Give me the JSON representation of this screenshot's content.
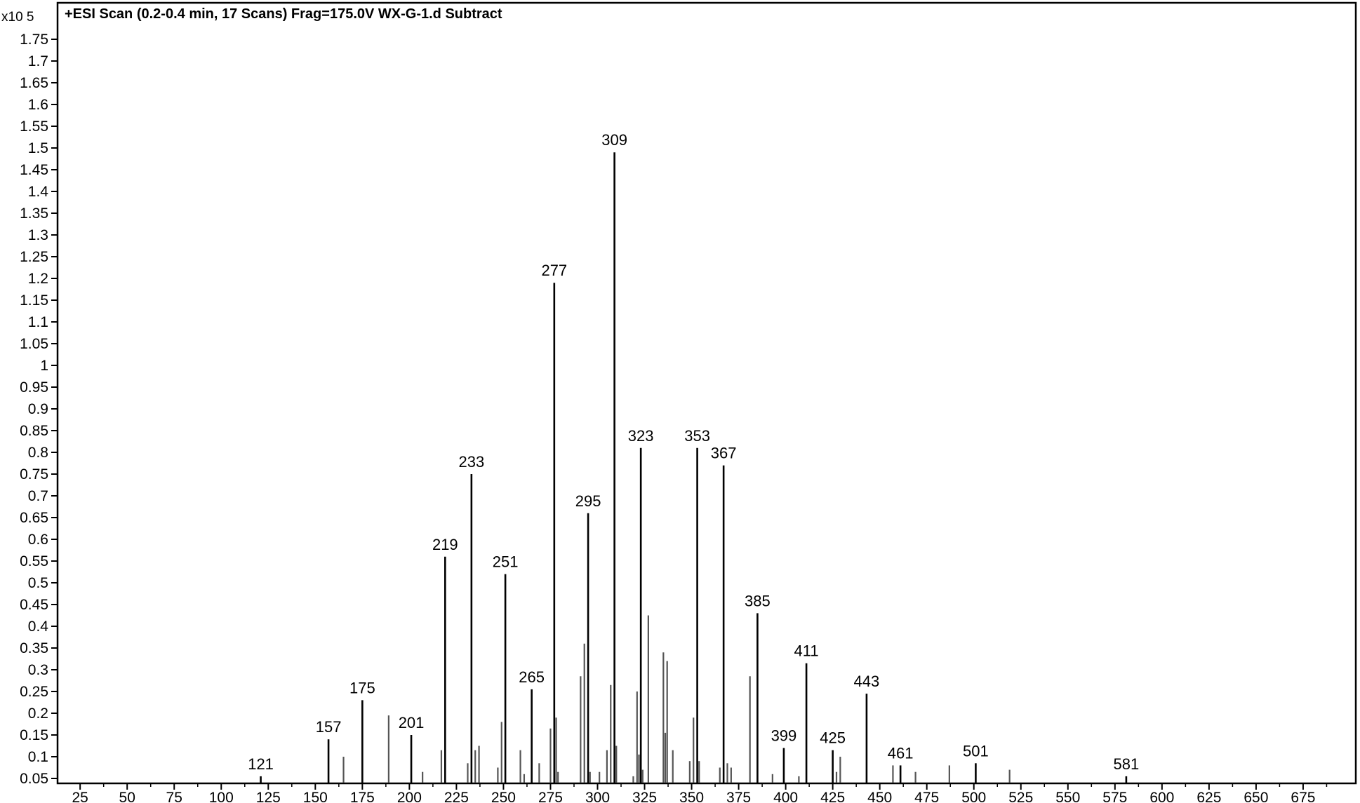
{
  "chart_data": {
    "type": "bar",
    "title": "+ESI Scan (0.2-0.4 min, 17 Scans) Frag=175.0V WX-G-1.d  Subtract",
    "y_exponent_label": "x10 5",
    "xlabel": "",
    "ylabel": "",
    "xlim": [
      13,
      703
    ],
    "ylim": [
      0.05,
      1.8
    ],
    "x_ticks": [
      25,
      50,
      75,
      100,
      125,
      150,
      175,
      200,
      225,
      250,
      275,
      300,
      325,
      350,
      375,
      400,
      425,
      450,
      475,
      500,
      525,
      550,
      575,
      600,
      625,
      650,
      675
    ],
    "y_ticks": [
      "0.05",
      "0.1",
      "0.15",
      "0.2",
      "0.25",
      "0.3",
      "0.35",
      "0.4",
      "0.45",
      "0.5",
      "0.55",
      "0.6",
      "0.65",
      "0.7",
      "0.75",
      "0.8",
      "0.85",
      "0.9",
      "0.95",
      "1",
      "1.05",
      "1.1",
      "1.15",
      "1.2",
      "1.25",
      "1.3",
      "1.35",
      "1.4",
      "1.45",
      "1.5",
      "1.55",
      "1.6",
      "1.65",
      "1.7",
      "1.75"
    ],
    "grid": false,
    "peaks": [
      {
        "mz": 121,
        "intensity": 0.055,
        "label": "121"
      },
      {
        "mz": 157,
        "intensity": 0.14,
        "label": "157"
      },
      {
        "mz": 165,
        "intensity": 0.1,
        "label": ""
      },
      {
        "mz": 175,
        "intensity": 0.23,
        "label": "175"
      },
      {
        "mz": 189,
        "intensity": 0.195,
        "label": ""
      },
      {
        "mz": 201,
        "intensity": 0.15,
        "label": "201"
      },
      {
        "mz": 207,
        "intensity": 0.065,
        "label": ""
      },
      {
        "mz": 217,
        "intensity": 0.115,
        "label": ""
      },
      {
        "mz": 219,
        "intensity": 0.56,
        "label": "219"
      },
      {
        "mz": 231,
        "intensity": 0.085,
        "label": ""
      },
      {
        "mz": 233,
        "intensity": 0.75,
        "label": "233"
      },
      {
        "mz": 235,
        "intensity": 0.115,
        "label": ""
      },
      {
        "mz": 237,
        "intensity": 0.125,
        "label": ""
      },
      {
        "mz": 247,
        "intensity": 0.075,
        "label": ""
      },
      {
        "mz": 249,
        "intensity": 0.18,
        "label": ""
      },
      {
        "mz": 251,
        "intensity": 0.52,
        "label": "251"
      },
      {
        "mz": 259,
        "intensity": 0.115,
        "label": ""
      },
      {
        "mz": 261,
        "intensity": 0.06,
        "label": ""
      },
      {
        "mz": 265,
        "intensity": 0.255,
        "label": "265"
      },
      {
        "mz": 269,
        "intensity": 0.085,
        "label": ""
      },
      {
        "mz": 275,
        "intensity": 0.165,
        "label": ""
      },
      {
        "mz": 277,
        "intensity": 1.19,
        "label": "277"
      },
      {
        "mz": 278,
        "intensity": 0.19,
        "label": ""
      },
      {
        "mz": 279,
        "intensity": 0.065,
        "label": ""
      },
      {
        "mz": 291,
        "intensity": 0.285,
        "label": ""
      },
      {
        "mz": 293,
        "intensity": 0.36,
        "label": ""
      },
      {
        "mz": 295,
        "intensity": 0.66,
        "label": "295"
      },
      {
        "mz": 296,
        "intensity": 0.065,
        "label": ""
      },
      {
        "mz": 301,
        "intensity": 0.065,
        "label": ""
      },
      {
        "mz": 305,
        "intensity": 0.115,
        "label": ""
      },
      {
        "mz": 307,
        "intensity": 0.265,
        "label": ""
      },
      {
        "mz": 309,
        "intensity": 1.49,
        "label": "309"
      },
      {
        "mz": 310,
        "intensity": 0.125,
        "label": ""
      },
      {
        "mz": 319,
        "intensity": 0.055,
        "label": ""
      },
      {
        "mz": 321,
        "intensity": 0.25,
        "label": ""
      },
      {
        "mz": 322,
        "intensity": 0.105,
        "label": ""
      },
      {
        "mz": 323,
        "intensity": 0.81,
        "label": "323"
      },
      {
        "mz": 324,
        "intensity": 0.07,
        "label": ""
      },
      {
        "mz": 327,
        "intensity": 0.425,
        "label": ""
      },
      {
        "mz": 335,
        "intensity": 0.34,
        "label": ""
      },
      {
        "mz": 336,
        "intensity": 0.155,
        "label": ""
      },
      {
        "mz": 337,
        "intensity": 0.32,
        "label": ""
      },
      {
        "mz": 340,
        "intensity": 0.115,
        "label": ""
      },
      {
        "mz": 349,
        "intensity": 0.09,
        "label": ""
      },
      {
        "mz": 351,
        "intensity": 0.19,
        "label": ""
      },
      {
        "mz": 353,
        "intensity": 0.81,
        "label": "353"
      },
      {
        "mz": 354,
        "intensity": 0.09,
        "label": ""
      },
      {
        "mz": 365,
        "intensity": 0.075,
        "label": ""
      },
      {
        "mz": 367,
        "intensity": 0.77,
        "label": "367"
      },
      {
        "mz": 369,
        "intensity": 0.085,
        "label": ""
      },
      {
        "mz": 371,
        "intensity": 0.075,
        "label": ""
      },
      {
        "mz": 381,
        "intensity": 0.285,
        "label": ""
      },
      {
        "mz": 385,
        "intensity": 0.43,
        "label": "385"
      },
      {
        "mz": 393,
        "intensity": 0.06,
        "label": ""
      },
      {
        "mz": 399,
        "intensity": 0.12,
        "label": "399"
      },
      {
        "mz": 407,
        "intensity": 0.055,
        "label": ""
      },
      {
        "mz": 411,
        "intensity": 0.315,
        "label": "411"
      },
      {
        "mz": 425,
        "intensity": 0.115,
        "label": "425"
      },
      {
        "mz": 427,
        "intensity": 0.065,
        "label": ""
      },
      {
        "mz": 429,
        "intensity": 0.1,
        "label": ""
      },
      {
        "mz": 443,
        "intensity": 0.245,
        "label": "443"
      },
      {
        "mz": 457,
        "intensity": 0.08,
        "label": ""
      },
      {
        "mz": 461,
        "intensity": 0.08,
        "label": "461"
      },
      {
        "mz": 469,
        "intensity": 0.065,
        "label": ""
      },
      {
        "mz": 487,
        "intensity": 0.08,
        "label": ""
      },
      {
        "mz": 501,
        "intensity": 0.085,
        "label": "501"
      },
      {
        "mz": 519,
        "intensity": 0.07,
        "label": ""
      },
      {
        "mz": 581,
        "intensity": 0.055,
        "label": "581"
      }
    ],
    "colors": {
      "axis": "#000000",
      "peak": "#000000",
      "background": "#ffffff"
    }
  }
}
